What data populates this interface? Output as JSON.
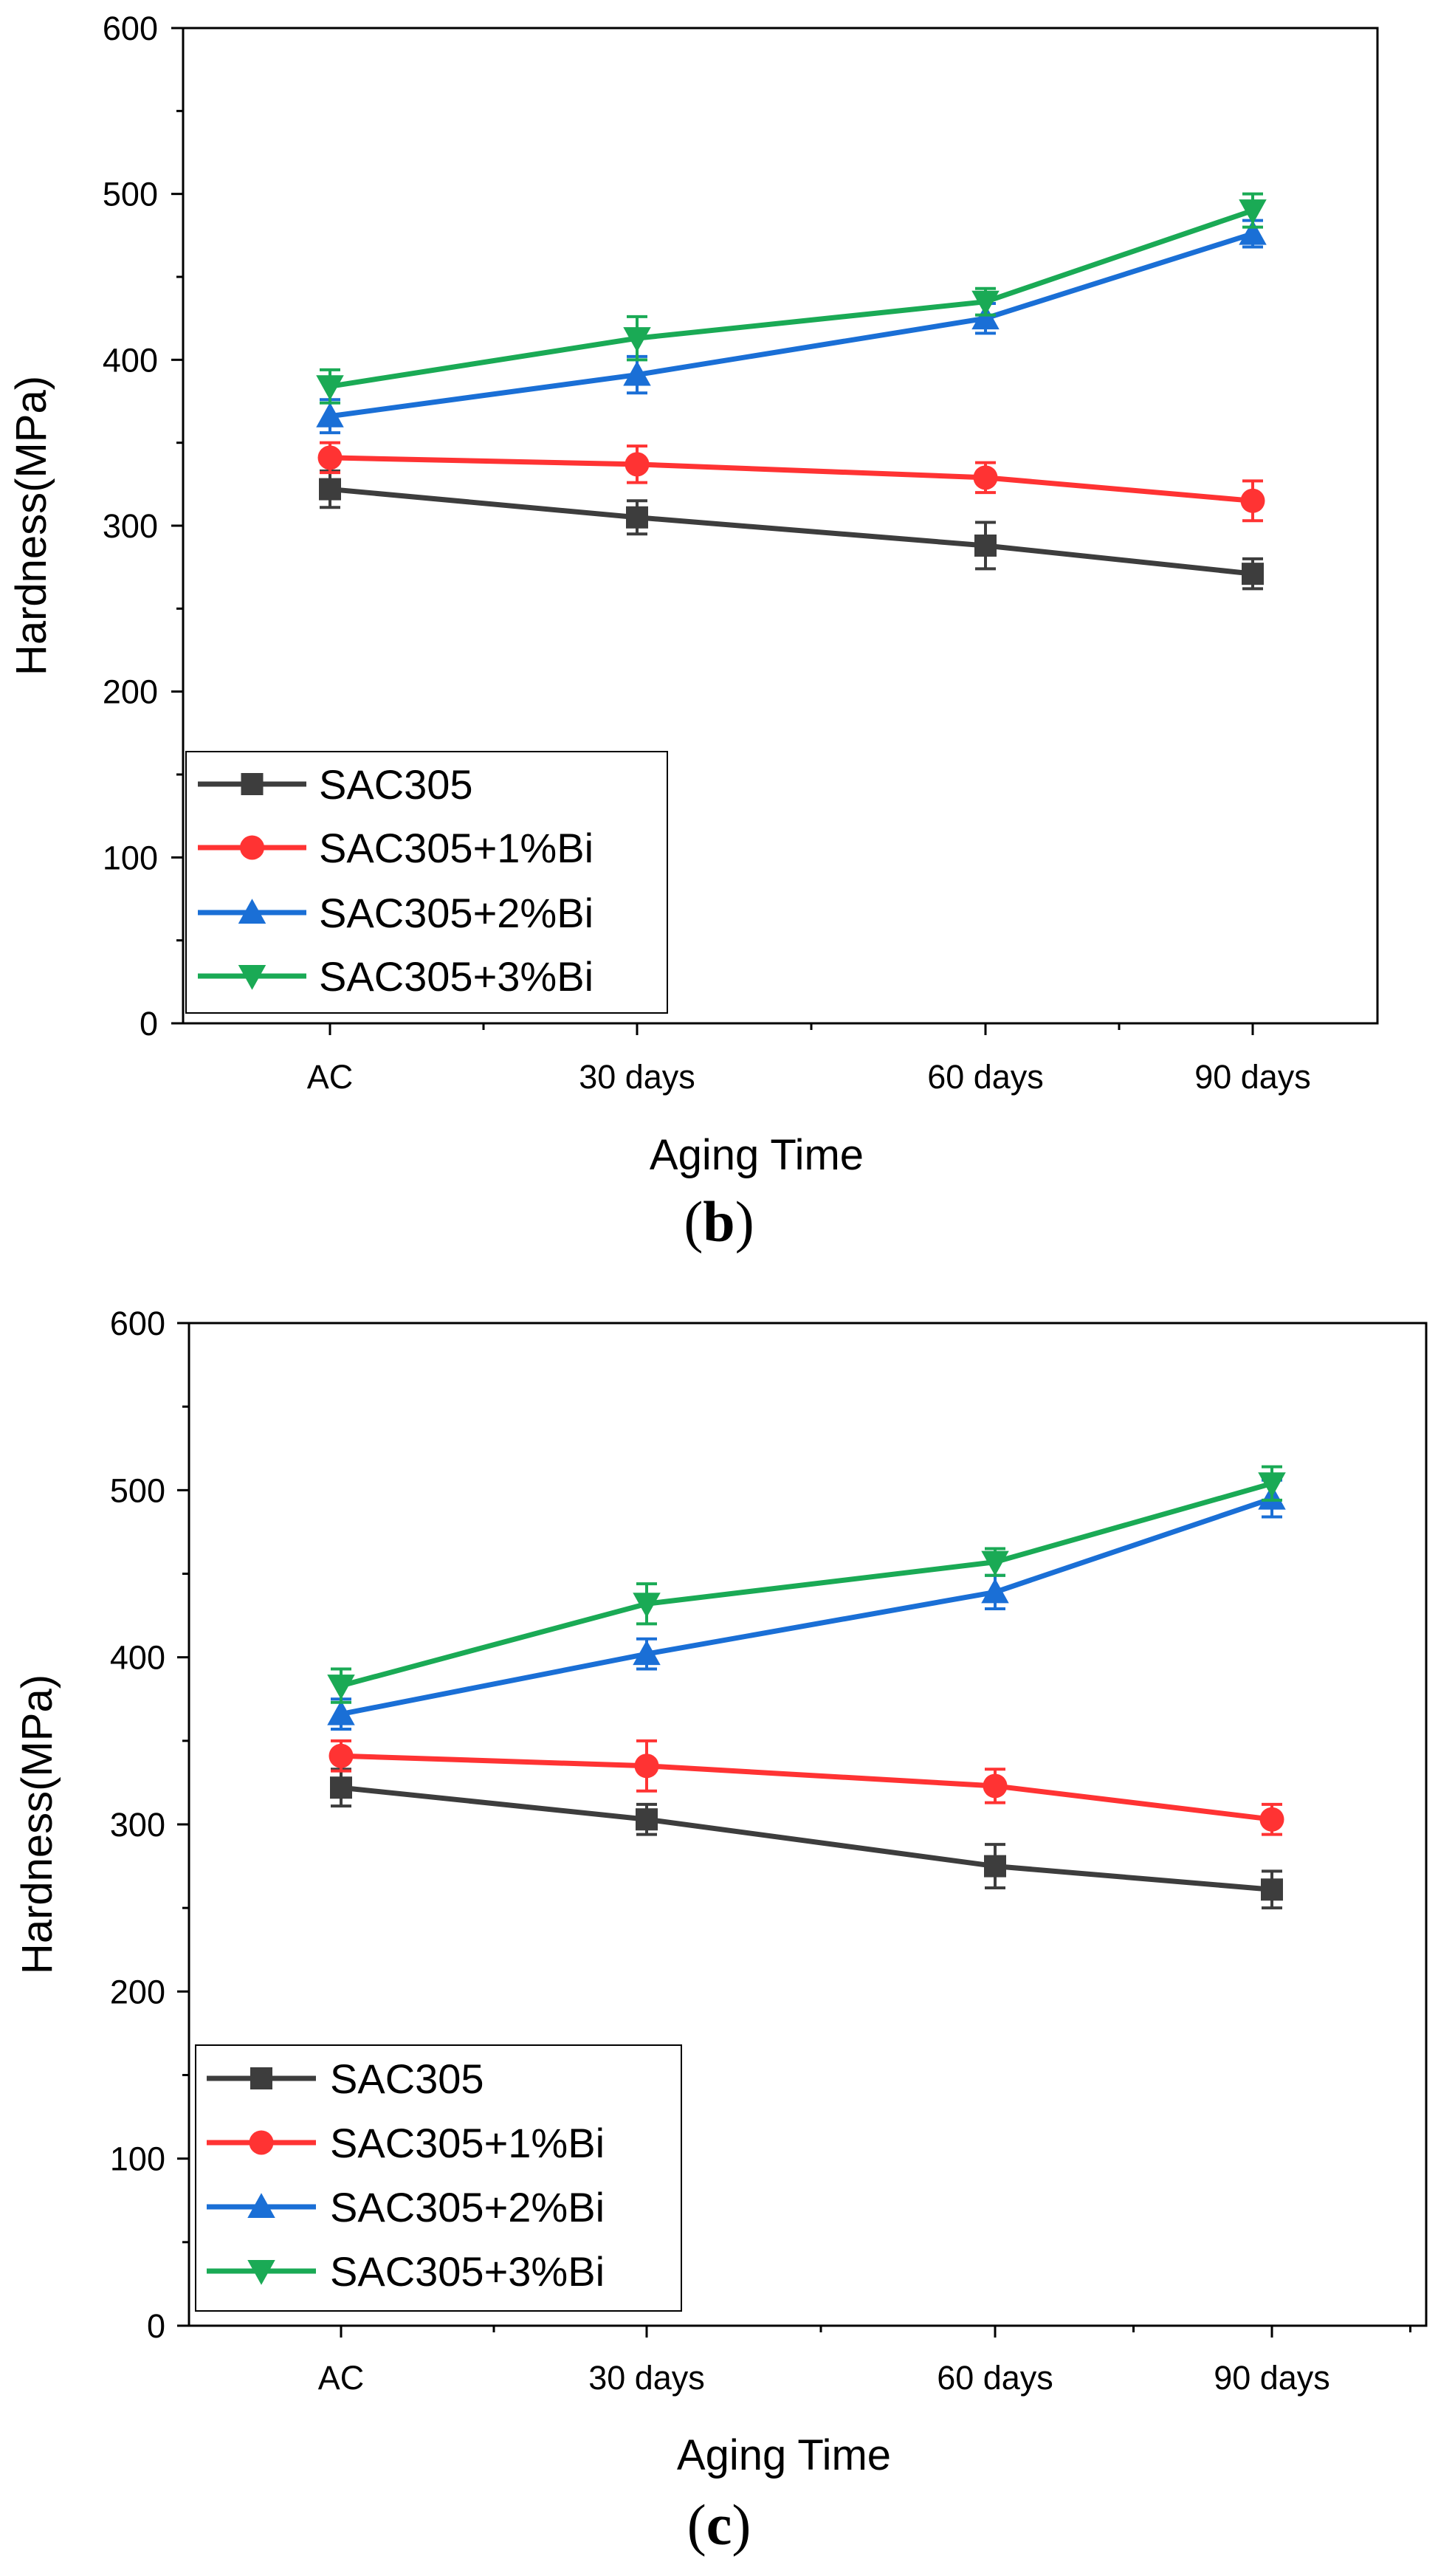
{
  "chart_data": [
    {
      "type": "line",
      "panel_label": "b",
      "xlabel": "Aging Time",
      "ylabel": "Hardness(MPa)",
      "ylim": [
        0,
        600
      ],
      "yticks": [
        0,
        100,
        200,
        300,
        400,
        500,
        600
      ],
      "categories": [
        "AC",
        "30 days",
        "60 days",
        "90 days"
      ],
      "legend_position": "lower-left",
      "series": [
        {
          "name": "SAC305",
          "color": "#3d3d3d",
          "marker": "square",
          "values": [
            322,
            305,
            288,
            271
          ],
          "errors": [
            11,
            10,
            14,
            9
          ]
        },
        {
          "name": "SAC305+1%Bi",
          "color": "#ff3333",
          "marker": "circle",
          "values": [
            341,
            337,
            329,
            315
          ],
          "errors": [
            9,
            11,
            9,
            12
          ]
        },
        {
          "name": "SAC305+2%Bi",
          "color": "#1a6fd6",
          "marker": "triangle-up",
          "values": [
            366,
            391,
            425,
            476
          ],
          "errors": [
            10,
            11,
            9,
            8
          ]
        },
        {
          "name": "SAC305+3%Bi",
          "color": "#1aaa55",
          "marker": "triangle-down",
          "values": [
            384,
            413,
            435,
            490
          ],
          "errors": [
            10,
            13,
            8,
            10
          ]
        }
      ]
    },
    {
      "type": "line",
      "panel_label": "c",
      "xlabel": "Aging Time",
      "ylabel": "Hardness(MPa)",
      "ylim": [
        0,
        600
      ],
      "yticks": [
        0,
        100,
        200,
        300,
        400,
        500,
        600
      ],
      "categories": [
        "AC",
        "30 days",
        "60 days",
        "90 days"
      ],
      "legend_position": "lower-left",
      "series": [
        {
          "name": "SAC305",
          "color": "#3d3d3d",
          "marker": "square",
          "values": [
            322,
            303,
            275,
            261
          ],
          "errors": [
            11,
            9,
            13,
            11
          ]
        },
        {
          "name": "SAC305+1%Bi",
          "color": "#ff3333",
          "marker": "circle",
          "values": [
            341,
            335,
            323,
            303
          ],
          "errors": [
            9,
            15,
            10,
            9
          ]
        },
        {
          "name": "SAC305+2%Bi",
          "color": "#1a6fd6",
          "marker": "triangle-up",
          "values": [
            366,
            402,
            439,
            495
          ],
          "errors": [
            9,
            9,
            10,
            11
          ]
        },
        {
          "name": "SAC305+3%Bi",
          "color": "#1aaa55",
          "marker": "triangle-down",
          "values": [
            383,
            432,
            457,
            504
          ],
          "errors": [
            10,
            12,
            8,
            10
          ]
        }
      ]
    }
  ]
}
